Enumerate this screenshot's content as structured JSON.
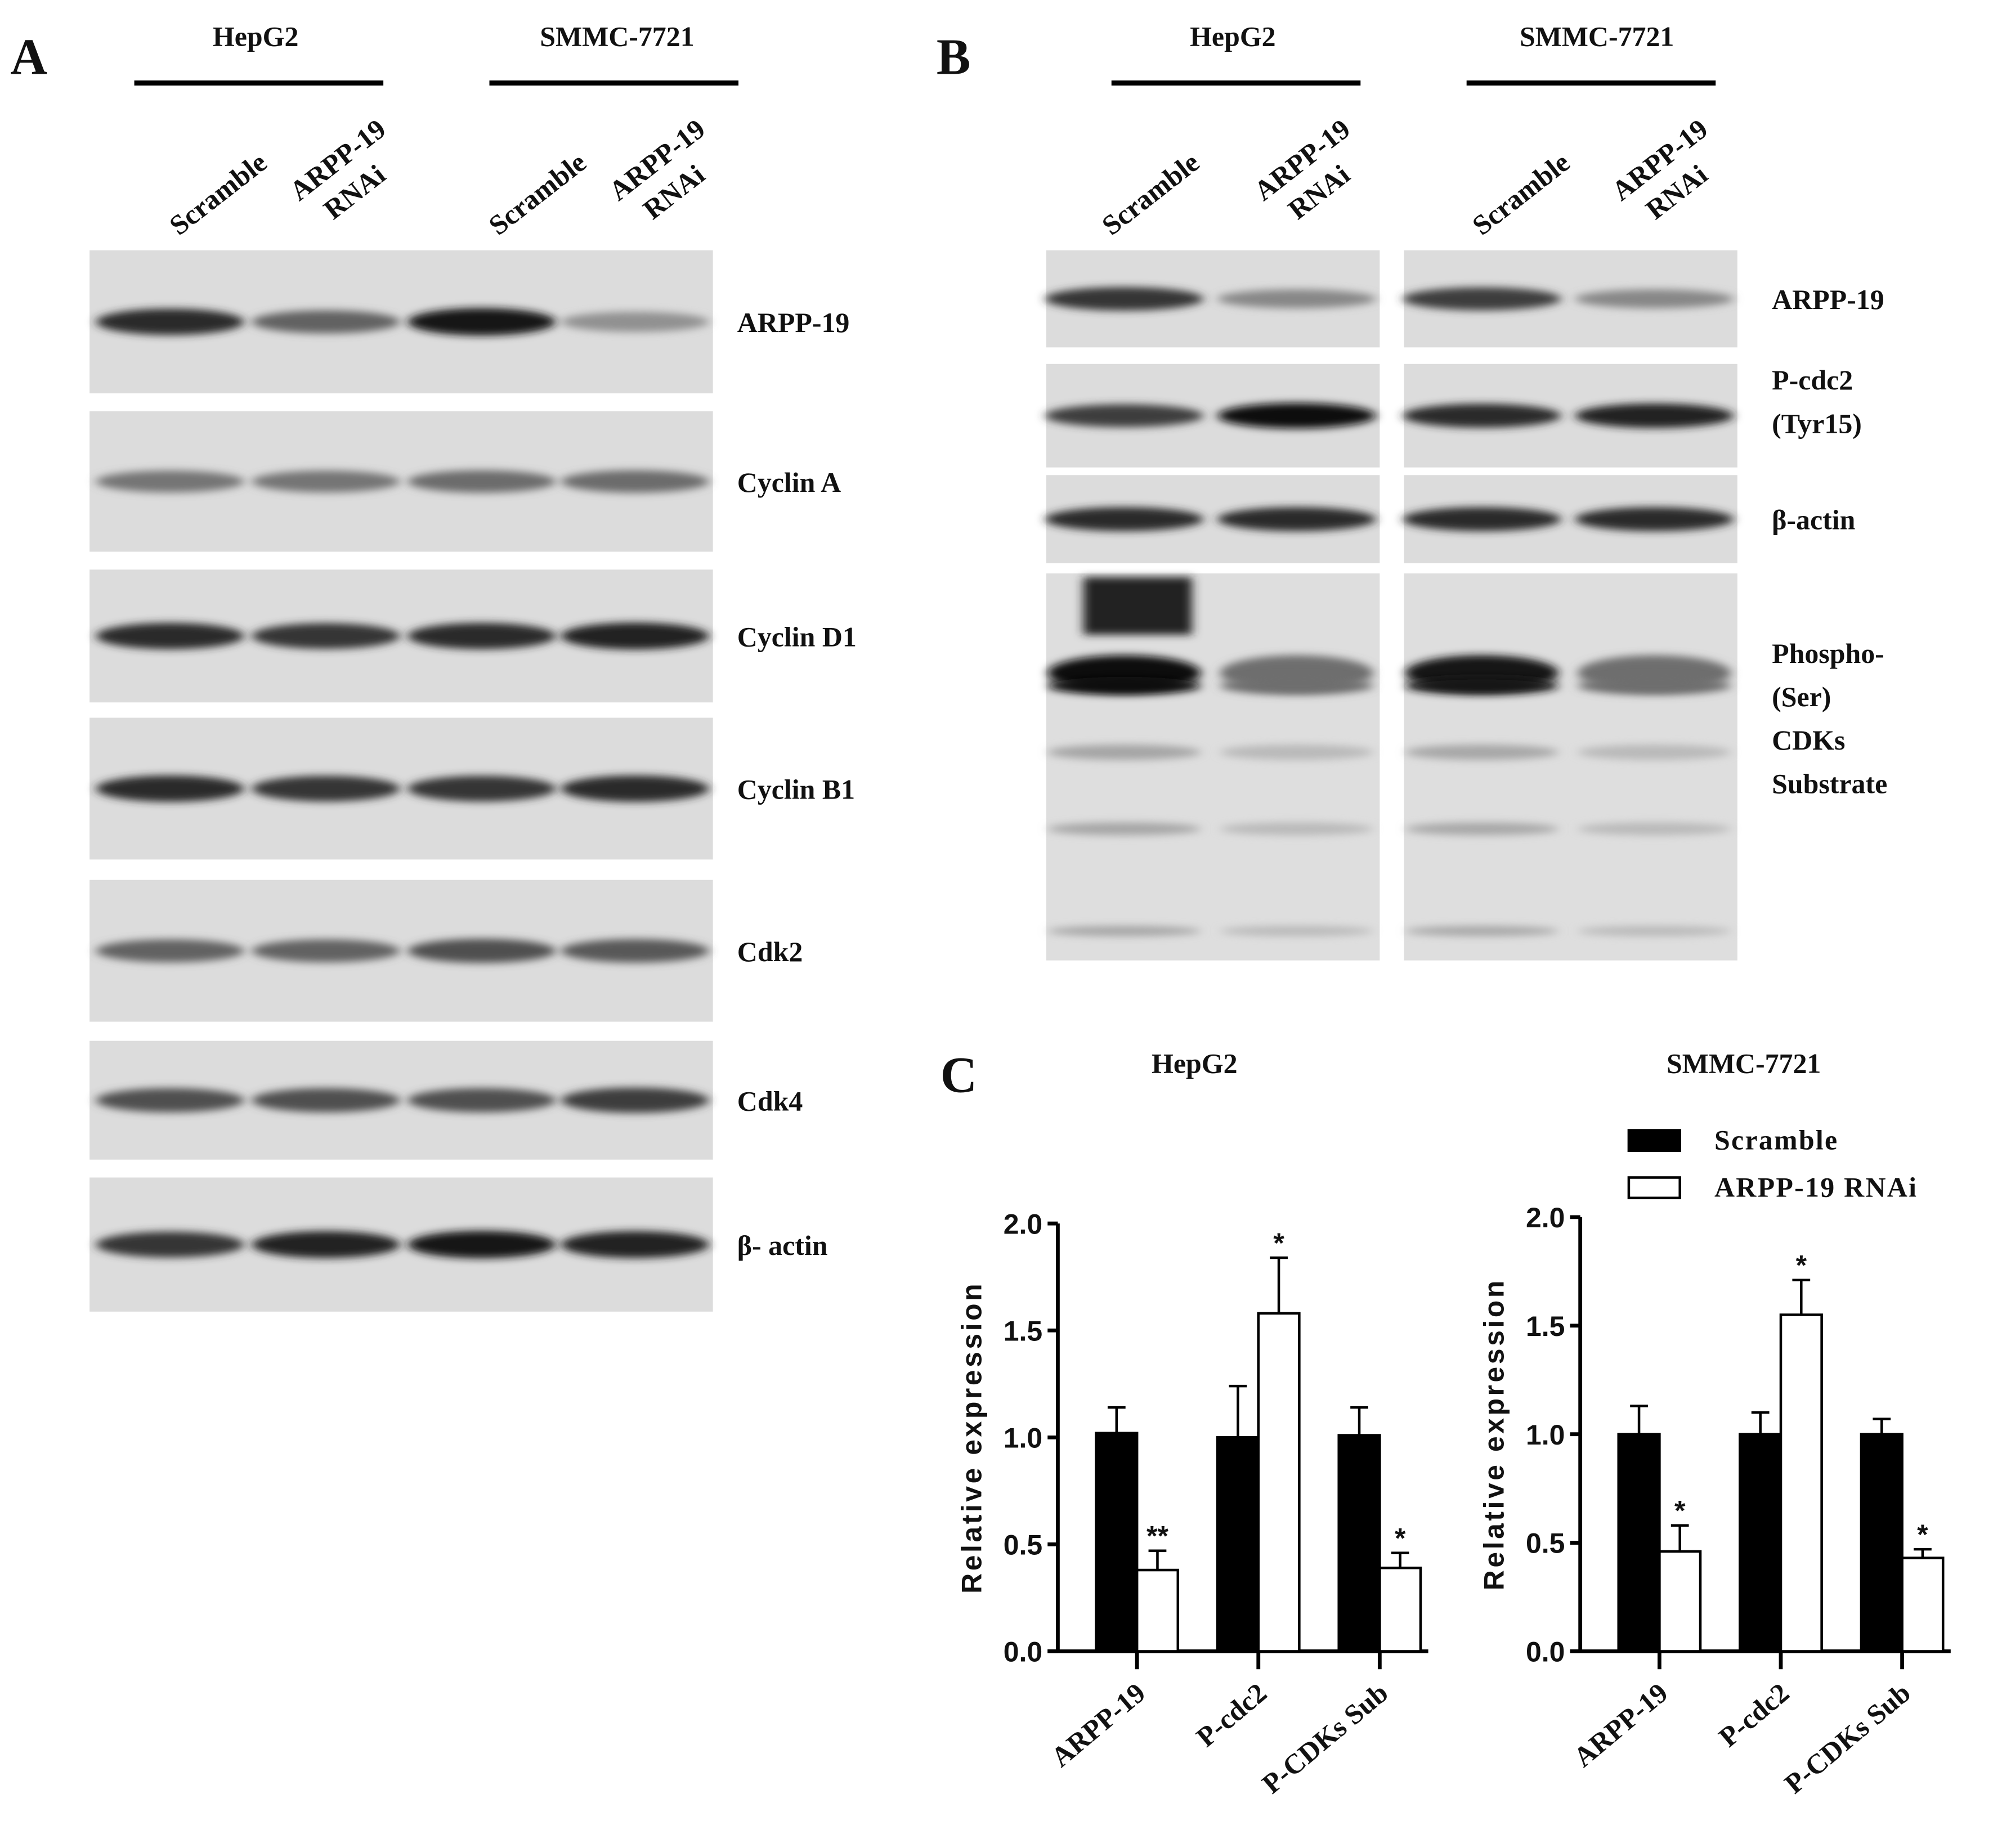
{
  "panels": {
    "a": "A",
    "b": "B",
    "c": "C"
  },
  "cell_lines": [
    "HepG2",
    "SMMC-7721"
  ],
  "lanes": {
    "scramble": "Scramble",
    "rnai_line1": "ARPP-19",
    "rnai_line2": "RNAi"
  },
  "panel_a": {
    "rows": [
      {
        "label": "ARPP-19",
        "band_intensity": [
          0.85,
          0.55,
          0.95,
          0.3
        ]
      },
      {
        "label": "Cyclin A",
        "band_intensity": [
          0.45,
          0.45,
          0.5,
          0.5
        ]
      },
      {
        "label": "Cyclin D1",
        "band_intensity": [
          0.85,
          0.8,
          0.85,
          0.9
        ]
      },
      {
        "label": "Cyclin B1",
        "band_intensity": [
          0.85,
          0.8,
          0.8,
          0.85
        ]
      },
      {
        "label": "Cdk2",
        "band_intensity": [
          0.55,
          0.55,
          0.65,
          0.6
        ]
      },
      {
        "label": "Cdk4",
        "band_intensity": [
          0.65,
          0.65,
          0.65,
          0.75
        ]
      },
      {
        "label": "β- actin",
        "band_intensity": [
          0.8,
          0.9,
          0.95,
          0.9
        ]
      }
    ]
  },
  "panel_b": {
    "rows": [
      {
        "label": [
          "ARPP-19"
        ],
        "band_intensity": [
          0.8,
          0.35,
          0.75,
          0.35
        ]
      },
      {
        "label": [
          "P-cdc2",
          "(Tyr15)"
        ],
        "band_intensity": [
          0.75,
          1.0,
          0.85,
          0.9
        ]
      },
      {
        "label": [
          "β-actin"
        ],
        "band_intensity": [
          0.85,
          0.85,
          0.85,
          0.85
        ]
      },
      {
        "label": [
          "Phospho-",
          "(Ser)",
          "CDKs",
          "Substrate"
        ],
        "band_intensity": [
          1.0,
          0.5,
          0.95,
          0.5
        ]
      }
    ]
  },
  "chart_data": [
    {
      "type": "bar",
      "title": "HepG2",
      "ylabel": "Relative expression",
      "categories": [
        "ARPP-19",
        "P-cdc2",
        "P-CDKs Sub"
      ],
      "ylim": [
        0,
        2.0
      ],
      "yticks": [
        "0.0",
        "0.5",
        "1.0",
        "1.5",
        "2.0"
      ],
      "series": [
        {
          "name": "Scramble",
          "color": "#000000",
          "values": [
            1.02,
            1.0,
            1.01
          ],
          "errors": [
            0.12,
            0.24,
            0.13
          ]
        },
        {
          "name": "ARPP-19 RNAi",
          "color": "#ffffff",
          "values": [
            0.38,
            1.58,
            0.39
          ],
          "errors": [
            0.09,
            0.26,
            0.07
          ]
        }
      ],
      "significance": [
        [
          "",
          "**"
        ],
        [
          "",
          "*"
        ],
        [
          "",
          "*"
        ]
      ]
    },
    {
      "type": "bar",
      "title": "SMMC-7721",
      "ylabel": "Relative expression",
      "categories": [
        "ARPP-19",
        "P-cdc2",
        "P-CDKs Sub"
      ],
      "ylim": [
        0,
        2.0
      ],
      "yticks": [
        "0.0",
        "0.5",
        "1.0",
        "1.5",
        "2.0"
      ],
      "series": [
        {
          "name": "Scramble",
          "color": "#000000",
          "values": [
            1.0,
            1.0,
            1.0
          ],
          "errors": [
            0.13,
            0.1,
            0.07
          ]
        },
        {
          "name": "ARPP-19 RNAi",
          "color": "#ffffff",
          "values": [
            0.46,
            1.55,
            0.43
          ],
          "errors": [
            0.12,
            0.16,
            0.04
          ]
        }
      ],
      "significance": [
        [
          "",
          "*"
        ],
        [
          "",
          "*"
        ],
        [
          "",
          "*"
        ]
      ],
      "legend": "top-right"
    }
  ]
}
